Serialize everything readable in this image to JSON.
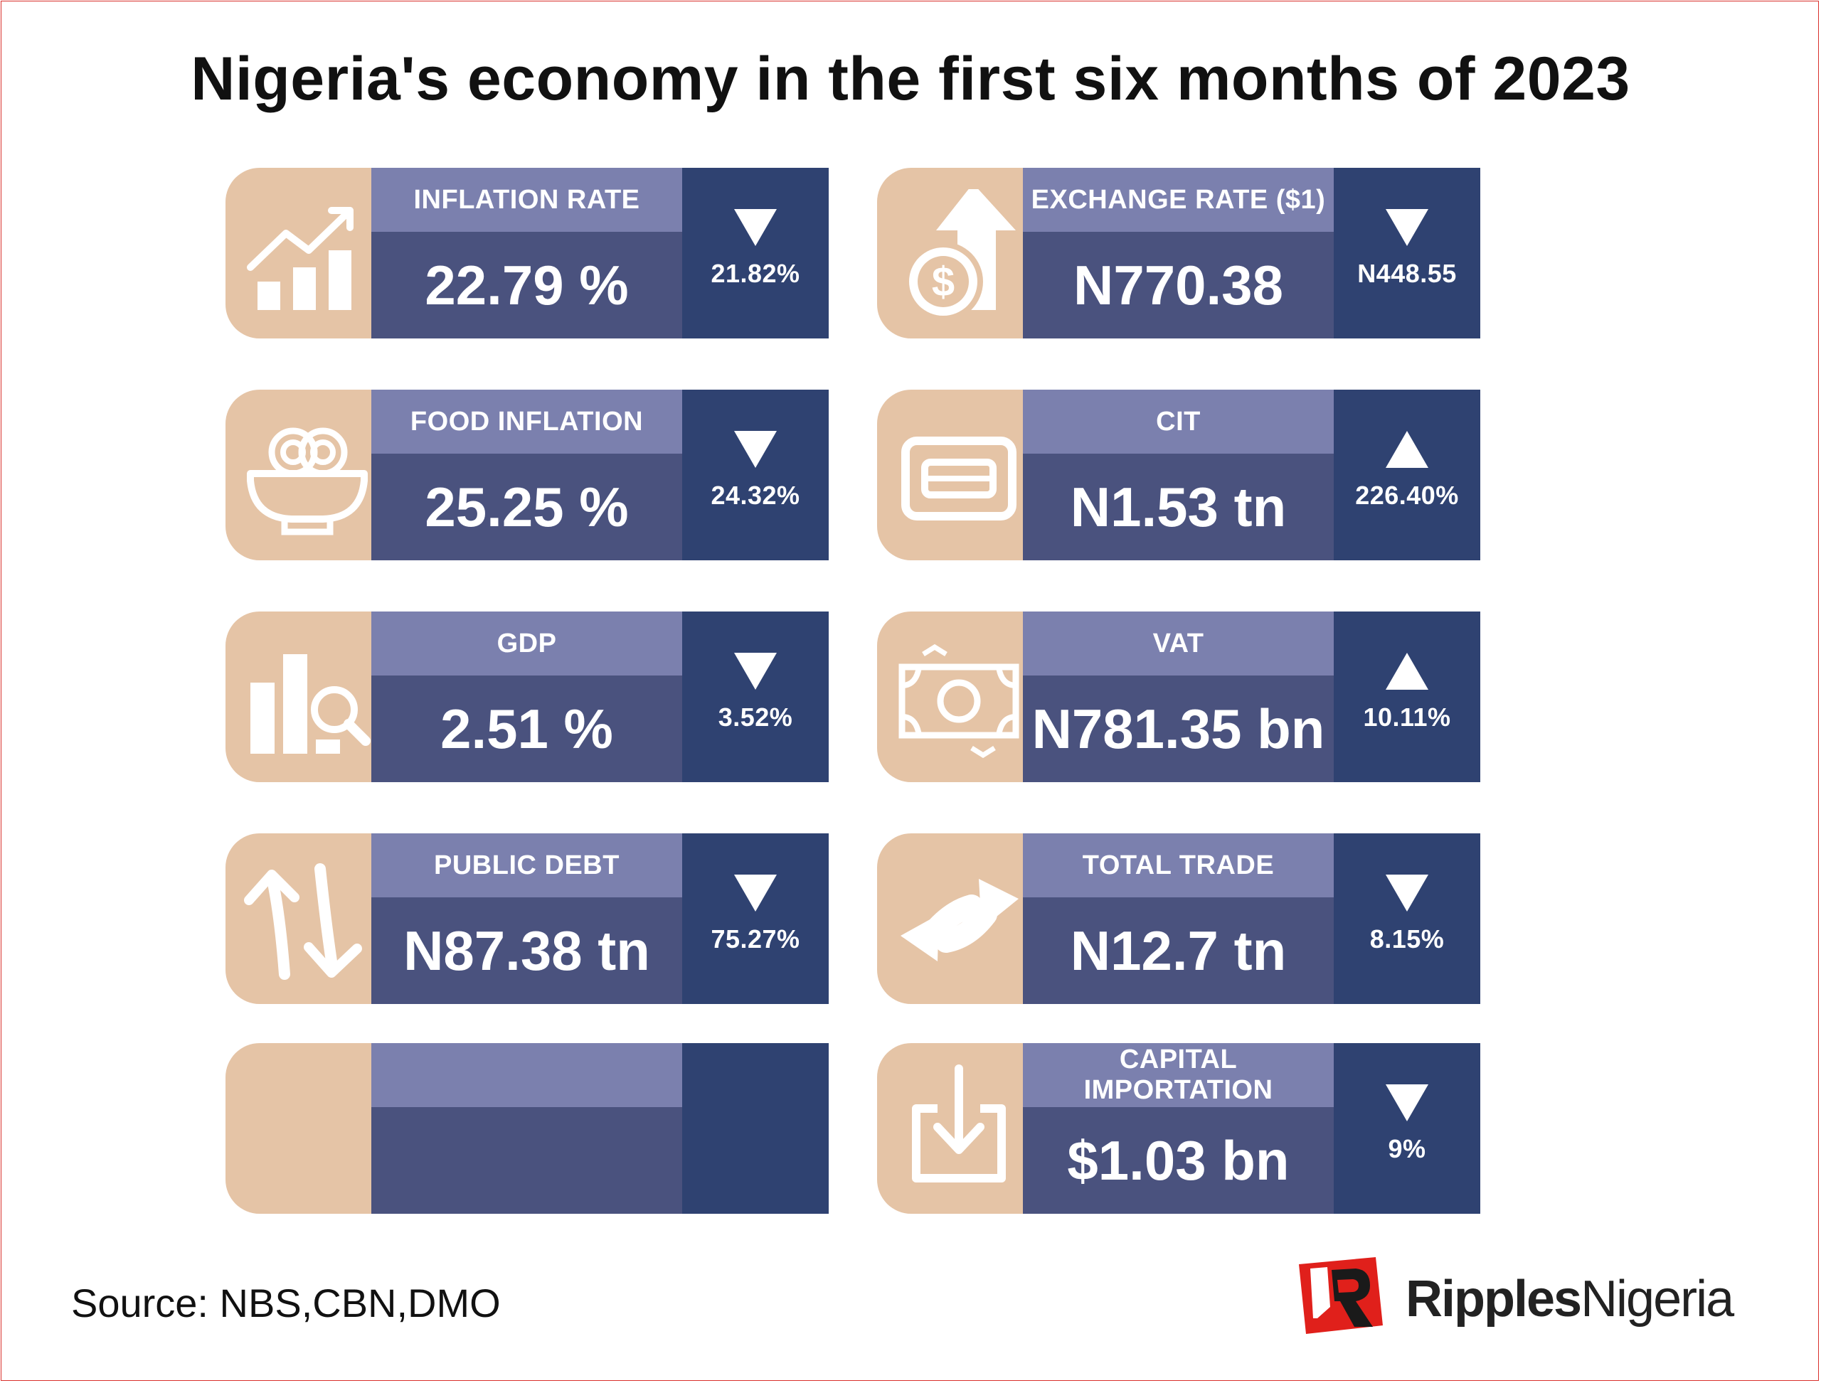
{
  "title": "Nigeria's economy in the first six months of 2023",
  "colors": {
    "icon_bg": "#e5c4a6",
    "label_bg": "#7b80ae",
    "value_bg": "#4a527e",
    "change_bg": "#2f4271",
    "brand_red": "#e0201b"
  },
  "cards": [
    {
      "label": "INFLATION RATE",
      "value": "22.79 %",
      "direction": "down",
      "change": "21.82%",
      "icon": "line-chart-up-icon"
    },
    {
      "label": "EXCHANGE RATE ($1)",
      "value": "N770.38",
      "direction": "down",
      "change": "N448.55",
      "icon": "dollar-coin-arrow-icon"
    },
    {
      "label": "FOOD INFLATION",
      "value": "25.25 %",
      "direction": "down",
      "change": "24.32%",
      "icon": "food-bowl-icon"
    },
    {
      "label": "CIT",
      "value": "N1.53 tn",
      "direction": "up",
      "change": "226.40%",
      "icon": "card-icon"
    },
    {
      "label": "GDP",
      "value": "2.51 %",
      "direction": "down",
      "change": "3.52%",
      "icon": "chart-magnifier-icon"
    },
    {
      "label": "VAT",
      "value": "N781.35 bn",
      "direction": "up",
      "change": "10.11%",
      "icon": "banknote-icon"
    },
    {
      "label": "PUBLIC DEBT",
      "value": "N87.38 tn",
      "direction": "down",
      "change": "75.27%",
      "icon": "up-down-arrows-icon"
    },
    {
      "label": "TOTAL TRADE",
      "value": "N12.7 tn",
      "direction": "down",
      "change": "8.15%",
      "icon": "exchange-arrows-icon"
    },
    {
      "label": "",
      "value": "",
      "direction": "none",
      "change": "",
      "icon": ""
    },
    {
      "label": "CAPITAL IMPORTATION",
      "value": "$1.03 bn",
      "direction": "down",
      "change": "9%",
      "icon": "download-tray-icon"
    }
  ],
  "source": "Source: NBS,CBN,DMO",
  "brand": {
    "bold": "Ripples",
    "regular": "Nigeria",
    "logo": "ripples-logo-icon"
  }
}
